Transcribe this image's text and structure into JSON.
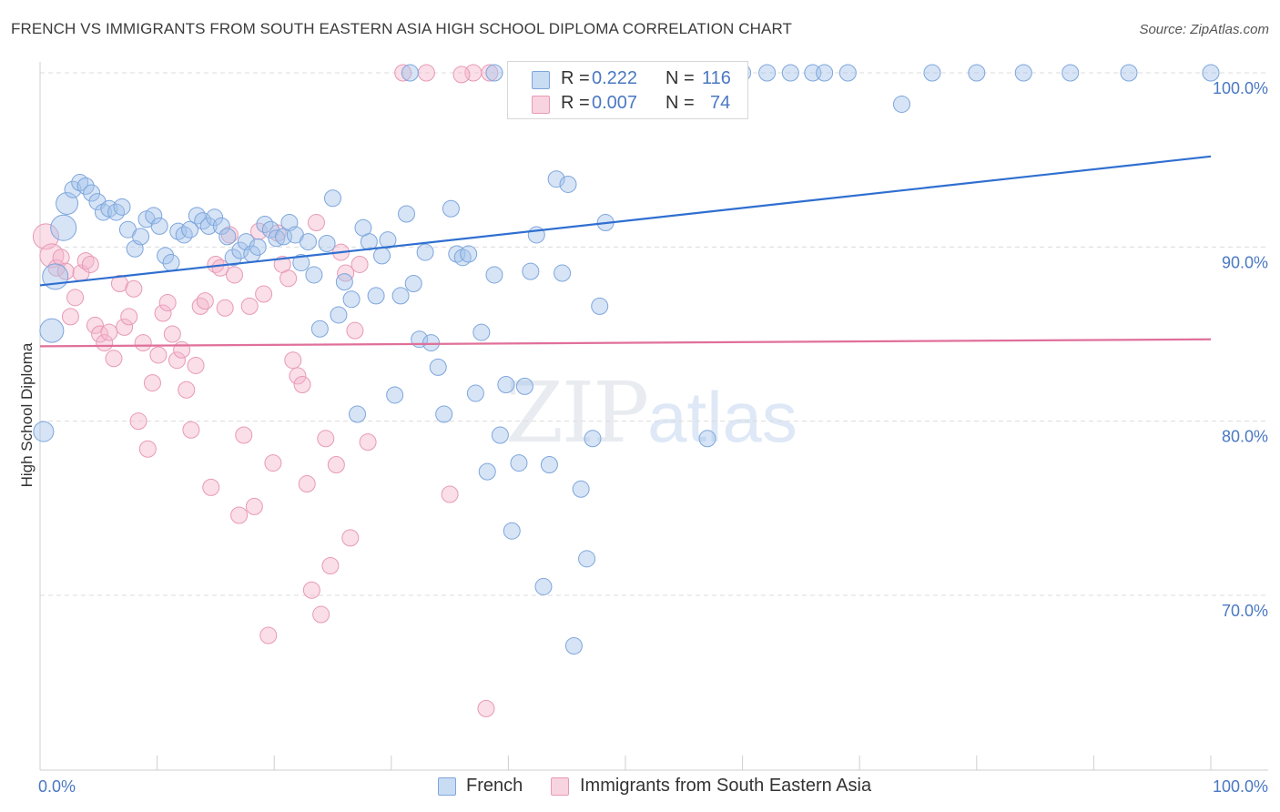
{
  "title": "FRENCH VS IMMIGRANTS FROM SOUTH EASTERN ASIA HIGH SCHOOL DIPLOMA CORRELATION CHART",
  "source": "Source: ZipAtlas.com",
  "watermark": {
    "zip": "ZIP",
    "atlas": "atlas"
  },
  "legend": {
    "r_label": "R =",
    "n_label": "N =",
    "rows": [
      {
        "r": "0.222",
        "n": "116"
      },
      {
        "r": "0.007",
        "n": "74"
      }
    ]
  },
  "colors": {
    "french": "#7ea6dc",
    "immigrants": "#e89ab6",
    "french_line": "#2f6fd0",
    "immigrants_line": "#e0709a"
  },
  "chart_data": {
    "type": "scatter",
    "ylabel": "High School Diploma",
    "xlim": [
      0,
      100
    ],
    "ylim": [
      60.5,
      101.5
    ],
    "x_tick_labels": [
      "0.0%",
      "100.0%"
    ],
    "y_ticks": [
      70,
      80,
      90,
      100
    ],
    "y_tick_labels": [
      "70.0%",
      "80.0%",
      "90.0%",
      "100.0%"
    ],
    "grid": true,
    "legend_placement": "bottom-center",
    "series": [
      {
        "name": "French",
        "trend": [
          [
            0,
            87.8
          ],
          [
            100,
            95.2
          ]
        ],
        "points": [
          [
            0.3,
            79.4
          ],
          [
            1.0,
            85.2
          ],
          [
            1.3,
            88.3
          ],
          [
            2.0,
            91.1
          ],
          [
            2.3,
            92.5
          ],
          [
            2.8,
            93.3
          ],
          [
            3.4,
            93.7
          ],
          [
            3.9,
            93.5
          ],
          [
            4.4,
            93.1
          ],
          [
            4.9,
            92.6
          ],
          [
            5.4,
            92.0
          ],
          [
            5.9,
            92.2
          ],
          [
            6.5,
            92.0
          ],
          [
            7.0,
            92.3
          ],
          [
            7.5,
            91.0
          ],
          [
            8.1,
            89.9
          ],
          [
            8.6,
            90.6
          ],
          [
            9.1,
            91.6
          ],
          [
            9.7,
            91.8
          ],
          [
            10.2,
            91.2
          ],
          [
            10.7,
            89.5
          ],
          [
            11.2,
            89.1
          ],
          [
            11.8,
            90.9
          ],
          [
            12.3,
            90.7
          ],
          [
            12.8,
            91.0
          ],
          [
            13.4,
            91.8
          ],
          [
            13.9,
            91.5
          ],
          [
            14.4,
            91.2
          ],
          [
            14.9,
            91.7
          ],
          [
            15.5,
            91.2
          ],
          [
            16.0,
            90.6
          ],
          [
            16.5,
            89.4
          ],
          [
            17.1,
            89.8
          ],
          [
            17.6,
            90.3
          ],
          [
            18.1,
            89.6
          ],
          [
            18.6,
            90.0
          ],
          [
            19.2,
            91.3
          ],
          [
            19.7,
            91.0
          ],
          [
            20.2,
            90.5
          ],
          [
            20.8,
            90.6
          ],
          [
            21.3,
            91.4
          ],
          [
            21.8,
            90.7
          ],
          [
            22.3,
            89.1
          ],
          [
            22.9,
            90.3
          ],
          [
            23.4,
            88.4
          ],
          [
            23.9,
            85.3
          ],
          [
            24.5,
            90.2
          ],
          [
            25.0,
            92.8
          ],
          [
            25.5,
            86.1
          ],
          [
            26.0,
            88.0
          ],
          [
            26.6,
            87.0
          ],
          [
            27.1,
            80.4
          ],
          [
            27.6,
            91.1
          ],
          [
            28.1,
            90.3
          ],
          [
            28.7,
            87.2
          ],
          [
            29.2,
            89.5
          ],
          [
            29.7,
            90.4
          ],
          [
            30.3,
            81.5
          ],
          [
            30.8,
            87.2
          ],
          [
            31.3,
            91.9
          ],
          [
            31.9,
            87.9
          ],
          [
            32.4,
            84.7
          ],
          [
            32.9,
            89.7
          ],
          [
            33.4,
            84.5
          ],
          [
            34.0,
            83.1
          ],
          [
            34.5,
            80.4
          ],
          [
            35.1,
            92.2
          ],
          [
            35.6,
            89.6
          ],
          [
            36.1,
            89.4
          ],
          [
            36.6,
            89.6
          ],
          [
            37.2,
            81.6
          ],
          [
            37.7,
            85.1
          ],
          [
            38.2,
            77.1
          ],
          [
            38.8,
            88.4
          ],
          [
            39.3,
            79.2
          ],
          [
            39.8,
            82.1
          ],
          [
            40.3,
            73.7
          ],
          [
            40.9,
            77.6
          ],
          [
            41.4,
            82.0
          ],
          [
            41.9,
            88.6
          ],
          [
            42.4,
            90.7
          ],
          [
            43.0,
            70.5
          ],
          [
            43.5,
            77.5
          ],
          [
            44.1,
            93.9
          ],
          [
            44.6,
            88.5
          ],
          [
            45.1,
            93.6
          ],
          [
            45.6,
            67.1
          ],
          [
            46.2,
            76.1
          ],
          [
            46.7,
            72.1
          ],
          [
            47.2,
            79.0
          ],
          [
            47.8,
            86.6
          ],
          [
            48.3,
            91.4
          ],
          [
            31.6,
            100
          ],
          [
            38.8,
            100
          ],
          [
            41.8,
            100
          ],
          [
            44.6,
            100
          ],
          [
            45.5,
            100
          ],
          [
            47.7,
            100
          ],
          [
            50.7,
            100
          ],
          [
            52.2,
            100
          ],
          [
            54.9,
            100
          ],
          [
            56.0,
            100
          ],
          [
            60.0,
            100
          ],
          [
            62.1,
            100
          ],
          [
            64.1,
            100
          ],
          [
            66.0,
            100
          ],
          [
            67.0,
            100
          ],
          [
            69.0,
            100
          ],
          [
            76.2,
            100
          ],
          [
            80.0,
            100
          ],
          [
            84.0,
            100
          ],
          [
            88.0,
            100
          ],
          [
            93.0,
            100
          ],
          [
            100.0,
            100
          ],
          [
            73.6,
            98.2
          ],
          [
            57.0,
            79.0
          ]
        ]
      },
      {
        "name": "Immigrants from South Eastern Asia",
        "trend": [
          [
            0,
            84.3
          ],
          [
            100,
            84.7
          ]
        ],
        "points": [
          [
            0.5,
            90.6
          ],
          [
            1.0,
            89.5
          ],
          [
            1.4,
            88.8
          ],
          [
            1.8,
            89.4
          ],
          [
            2.2,
            88.6
          ],
          [
            2.6,
            86.0
          ],
          [
            3.0,
            87.1
          ],
          [
            3.5,
            88.5
          ],
          [
            3.9,
            89.2
          ],
          [
            4.3,
            89.0
          ],
          [
            4.7,
            85.5
          ],
          [
            5.1,
            85.0
          ],
          [
            5.5,
            84.5
          ],
          [
            5.9,
            85.1
          ],
          [
            6.3,
            83.6
          ],
          [
            6.8,
            87.9
          ],
          [
            7.2,
            85.4
          ],
          [
            7.6,
            86.0
          ],
          [
            8.0,
            87.6
          ],
          [
            8.4,
            80.0
          ],
          [
            8.8,
            84.5
          ],
          [
            9.2,
            78.4
          ],
          [
            9.6,
            82.2
          ],
          [
            10.1,
            83.8
          ],
          [
            10.5,
            86.2
          ],
          [
            10.9,
            86.8
          ],
          [
            11.3,
            85.0
          ],
          [
            11.7,
            83.5
          ],
          [
            12.1,
            84.1
          ],
          [
            12.5,
            81.8
          ],
          [
            12.9,
            79.5
          ],
          [
            13.3,
            83.2
          ],
          [
            13.7,
            86.6
          ],
          [
            14.1,
            86.9
          ],
          [
            14.6,
            76.2
          ],
          [
            15.0,
            89.0
          ],
          [
            15.4,
            88.8
          ],
          [
            15.8,
            86.5
          ],
          [
            16.2,
            90.7
          ],
          [
            16.6,
            88.4
          ],
          [
            17.0,
            74.6
          ],
          [
            17.4,
            79.2
          ],
          [
            17.9,
            86.6
          ],
          [
            18.3,
            75.1
          ],
          [
            18.7,
            90.9
          ],
          [
            19.1,
            87.3
          ],
          [
            19.5,
            67.7
          ],
          [
            19.9,
            77.6
          ],
          [
            20.3,
            90.8
          ],
          [
            20.7,
            89.0
          ],
          [
            21.2,
            88.2
          ],
          [
            21.6,
            83.5
          ],
          [
            22.0,
            82.6
          ],
          [
            22.4,
            82.1
          ],
          [
            22.8,
            76.4
          ],
          [
            23.2,
            70.3
          ],
          [
            23.6,
            91.4
          ],
          [
            24.0,
            68.9
          ],
          [
            24.4,
            79.0
          ],
          [
            24.8,
            71.7
          ],
          [
            25.3,
            77.5
          ],
          [
            25.7,
            89.7
          ],
          [
            26.1,
            88.5
          ],
          [
            26.5,
            73.3
          ],
          [
            26.9,
            85.2
          ],
          [
            27.3,
            89.0
          ],
          [
            28.0,
            78.8
          ],
          [
            35.0,
            75.8
          ],
          [
            38.1,
            63.5
          ],
          [
            31.0,
            100
          ],
          [
            33.0,
            100
          ],
          [
            37.0,
            100
          ],
          [
            38.4,
            100
          ],
          [
            36.0,
            99.9
          ]
        ]
      }
    ]
  }
}
